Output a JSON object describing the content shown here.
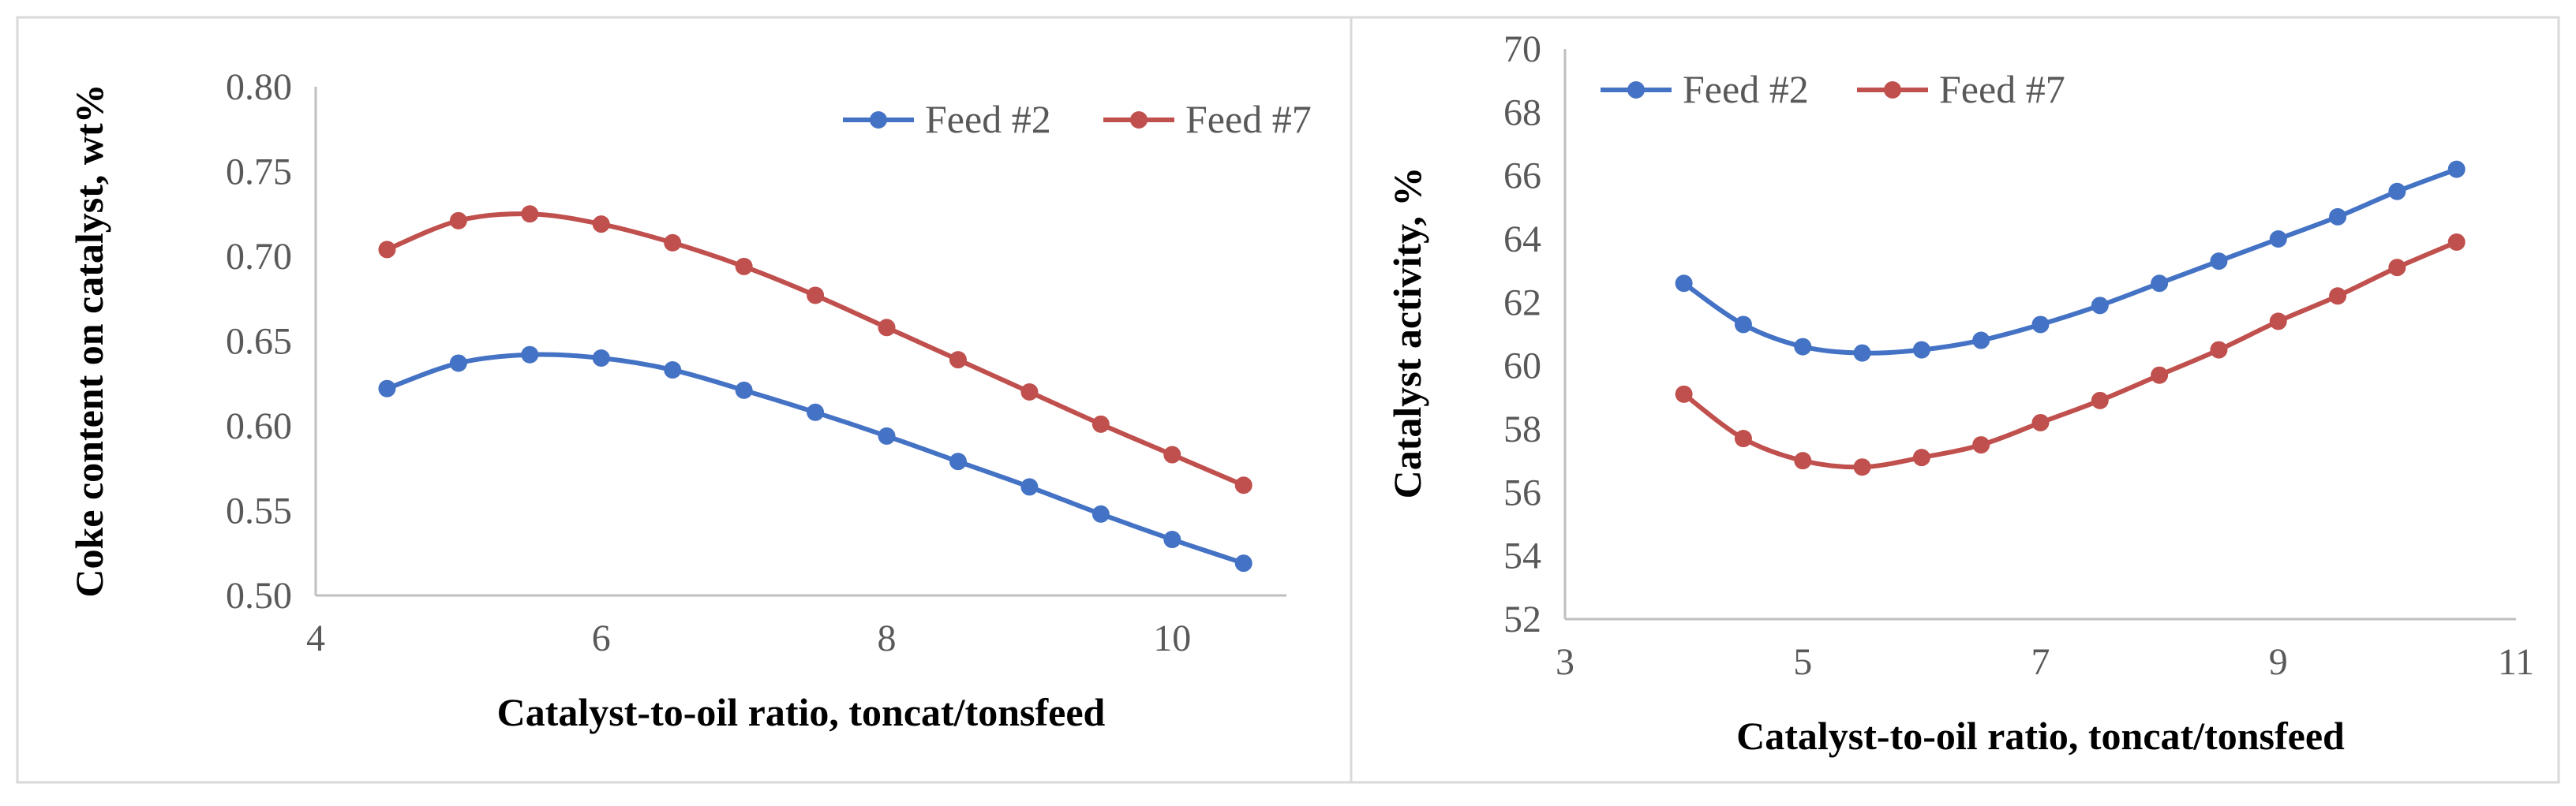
{
  "chart_data": [
    {
      "type": "line",
      "title": "",
      "xlabel": "Catalyst-to-oil ratio, toncat/tonsfeed",
      "ylabel": "Coke content on catalyst, wt%",
      "xlim": [
        4,
        10.8
      ],
      "ylim": [
        0.5,
        0.8
      ],
      "xticks": [
        4,
        6,
        8,
        10
      ],
      "xtick_labels": [
        "4",
        "6",
        "8",
        "10"
      ],
      "yticks": [
        0.5,
        0.55,
        0.6,
        0.65,
        0.7,
        0.75,
        0.8
      ],
      "ytick_labels": [
        "0.50",
        "0.55",
        "0.60",
        "0.65",
        "0.70",
        "0.75",
        "0.80"
      ],
      "grid": false,
      "legend_position": "top-right",
      "x": [
        4.5,
        5,
        5.5,
        6,
        6.5,
        7,
        7.5,
        8,
        8.5,
        9,
        9.5,
        10,
        10.5
      ],
      "series": [
        {
          "name": "Feed #2",
          "color": "#4472c4",
          "values": [
            0.622,
            0.637,
            0.642,
            0.64,
            0.633,
            0.621,
            0.608,
            0.594,
            0.579,
            0.564,
            0.548,
            0.533,
            0.519
          ]
        },
        {
          "name": "Feed #7",
          "color": "#c0504d",
          "values": [
            0.704,
            0.721,
            0.725,
            0.719,
            0.708,
            0.694,
            0.677,
            0.658,
            0.639,
            0.62,
            0.601,
            0.583,
            0.565
          ]
        }
      ]
    },
    {
      "type": "line",
      "title": "",
      "xlabel": "Catalyst-to-oil ratio, toncat/tonsfeed",
      "ylabel": "Catalyst activity, %",
      "xlim": [
        3,
        11
      ],
      "ylim": [
        52,
        70
      ],
      "xticks": [
        3,
        5,
        7,
        9,
        11
      ],
      "xtick_labels": [
        "3",
        "5",
        "7",
        "9",
        "11"
      ],
      "yticks": [
        52,
        54,
        56,
        58,
        60,
        62,
        64,
        66,
        68,
        70
      ],
      "ytick_labels": [
        "52",
        "54",
        "56",
        "58",
        "60",
        "62",
        "64",
        "66",
        "68",
        "70"
      ],
      "grid": false,
      "legend_position": "top-left",
      "x": [
        4,
        4.5,
        5,
        5.5,
        6,
        6.5,
        7,
        7.5,
        8,
        8.5,
        9,
        9.5,
        10,
        10.5
      ],
      "series": [
        {
          "name": "Feed #2",
          "color": "#4472c4",
          "values": [
            62.6,
            61.3,
            60.6,
            60.4,
            60.5,
            60.8,
            61.3,
            61.9,
            62.6,
            63.3,
            64.0,
            64.7,
            65.5,
            66.2
          ]
        },
        {
          "name": "Feed #7",
          "color": "#c0504d",
          "values": [
            59.1,
            57.7,
            57.0,
            56.8,
            57.1,
            57.5,
            58.2,
            58.9,
            59.7,
            60.5,
            61.4,
            62.2,
            63.1,
            63.9
          ]
        }
      ]
    }
  ]
}
